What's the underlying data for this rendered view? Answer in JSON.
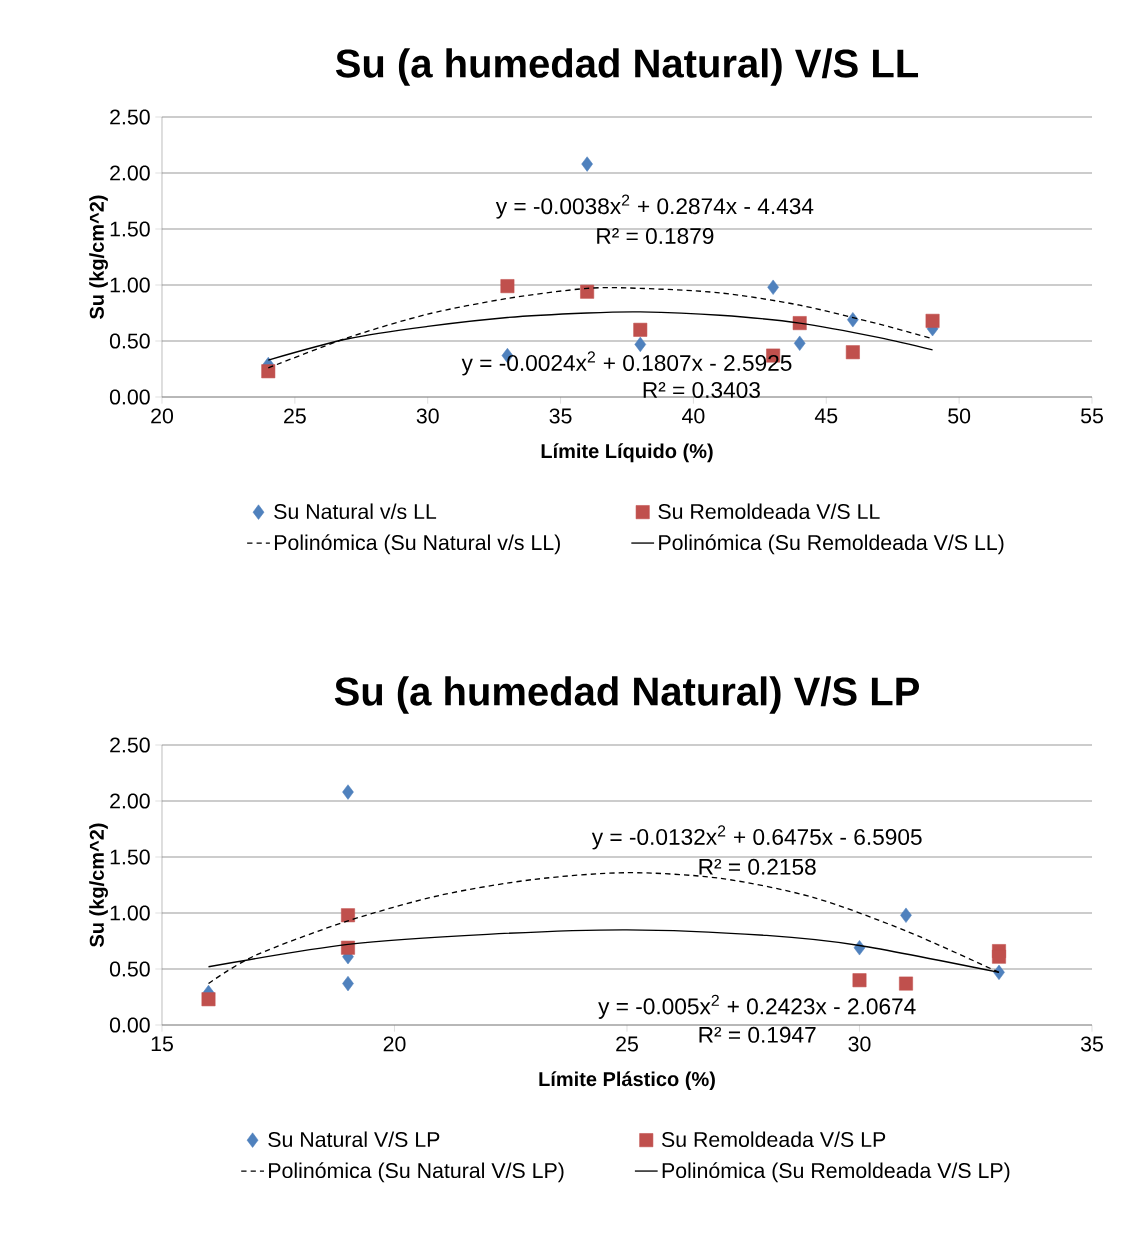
{
  "chart_data": [
    {
      "type": "scatter",
      "title": "Su (a humedad Natural) V/S LL",
      "xlabel": "Límite Líquido (%)",
      "ylabel": "Su (kg/cm^2)",
      "xlim": [
        20,
        55
      ],
      "xticks": [
        20,
        25,
        30,
        35,
        40,
        45,
        50,
        55
      ],
      "ylim": [
        0,
        2.5
      ],
      "yticks": [
        {
          "value": 0,
          "label": "0.00"
        },
        {
          "value": 0.5,
          "label": "0.50"
        },
        {
          "value": 1,
          "label": "1.00"
        },
        {
          "value": 1.5,
          "label": "1.50"
        },
        {
          "value": 2,
          "label": "2.00"
        },
        {
          "value": 2.5,
          "label": "2.50"
        }
      ],
      "grid": "y",
      "legend": "bottom",
      "series": [
        {
          "name": "Su Natural v/s LL",
          "marker": "diamond",
          "color": "#4f81bd",
          "x": [
            24,
            33,
            36,
            38,
            43,
            44,
            46,
            49
          ],
          "values": [
            0.29,
            0.37,
            2.08,
            0.47,
            0.98,
            0.48,
            0.69,
            0.61
          ]
        },
        {
          "name": "Su Remoldeada V/S LL",
          "marker": "square",
          "color": "#c0504d",
          "x": [
            24,
            33,
            36,
            38,
            43,
            44,
            46,
            49
          ],
          "values": [
            0.23,
            0.99,
            0.94,
            0.6,
            0.37,
            0.66,
            0.4,
            0.68
          ]
        },
        {
          "name": "Polinómica (Su Natural v/s LL)",
          "type": "line",
          "line_style": "dashed",
          "color": "#000000",
          "x": [
            24,
            27,
            30,
            33,
            36,
            38,
            41,
            44,
            47,
            49
          ],
          "values": [
            0.26,
            0.53,
            0.74,
            0.88,
            0.97,
            0.97,
            0.93,
            0.82,
            0.65,
            0.52
          ]
        },
        {
          "name": "Polinómica (Su Remoldeada V/S LL)",
          "type": "line",
          "line_style": "solid",
          "color": "#000000",
          "x": [
            24,
            27,
            30,
            33,
            36,
            38,
            41,
            44,
            47,
            49
          ],
          "values": [
            0.33,
            0.52,
            0.63,
            0.71,
            0.75,
            0.76,
            0.73,
            0.66,
            0.53,
            0.42
          ]
        }
      ],
      "annotations": [
        "y = -0.0038x$^{2}$ + 0.2874x - 4.434",
        "R² = 0.1879",
        "y = -0.0024x$^{2}$ + 0.1807x - 2.5925",
        "R² = 0.3403"
      ]
    },
    {
      "type": "scatter",
      "title": "Su (a humedad Natural) V/S LP",
      "xlabel": "Límite Plástico (%)",
      "ylabel": "Su (kg/cm^2)",
      "xlim": [
        15,
        35
      ],
      "xticks": [
        15,
        20,
        25,
        30,
        35
      ],
      "ylim": [
        0,
        2.5
      ],
      "yticks": [
        {
          "value": 0,
          "label": "0.00"
        },
        {
          "value": 0.5,
          "label": "0.50"
        },
        {
          "value": 1,
          "label": "1.00"
        },
        {
          "value": 1.5,
          "label": "1.50"
        },
        {
          "value": 2,
          "label": "2.00"
        },
        {
          "value": 2.5,
          "label": "2.50"
        }
      ],
      "grid": "y",
      "legend": "bottom",
      "series": [
        {
          "name": "Su Natural V/S LP",
          "marker": "diamond",
          "color": "#4f81bd",
          "x": [
            16,
            19,
            19,
            19,
            30,
            31,
            33
          ],
          "values": [
            0.29,
            2.08,
            0.37,
            0.61,
            0.69,
            0.98,
            0.47
          ]
        },
        {
          "name": "Su Remoldeada V/S LP",
          "marker": "square",
          "color": "#c0504d",
          "x": [
            16,
            19,
            19,
            30,
            31,
            33,
            33
          ],
          "values": [
            0.23,
            0.98,
            0.69,
            0.4,
            0.37,
            0.66,
            0.61
          ]
        },
        {
          "name": "Polinómica (Su Natural V/S LP)",
          "type": "line",
          "line_style": "dashed",
          "color": "#000000",
          "x": [
            16,
            17,
            19,
            21,
            23,
            25,
            27,
            29,
            31,
            33
          ],
          "values": [
            0.37,
            0.62,
            0.93,
            1.16,
            1.3,
            1.36,
            1.31,
            1.14,
            0.84,
            0.47
          ]
        },
        {
          "name": "Polinómica (Su Remoldeada V/S LP)",
          "type": "line",
          "line_style": "solid",
          "color": "#000000",
          "x": [
            16,
            19,
            22,
            25,
            28,
            30,
            33
          ],
          "values": [
            0.52,
            0.72,
            0.81,
            0.85,
            0.8,
            0.71,
            0.47
          ]
        }
      ],
      "annotations": [
        "y = -0.0132x$^{2}$ + 0.6475x - 6.5905",
        "R² = 0.2158",
        "y = -0.005x$^{2}$ + 0.2423x - 2.0674",
        "R² = 0.1947"
      ]
    }
  ]
}
